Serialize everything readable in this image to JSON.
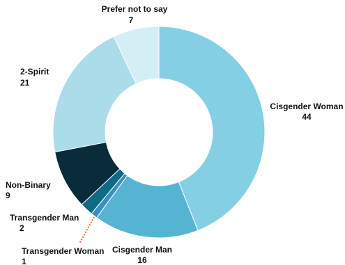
{
  "chart_data": {
    "type": "pie",
    "variant": "donut",
    "title": "",
    "categories": [
      "Cisgender Woman",
      "Cisgender Man",
      "Transgender Woman",
      "Transgender Man",
      "Non-Binary",
      "2-Spirit",
      "Prefer not to say"
    ],
    "values": [
      44,
      16,
      1,
      2,
      9,
      21,
      7
    ],
    "value_labels": [
      "44",
      "16",
      "1",
      "2",
      "9",
      "21",
      "7"
    ],
    "colors": [
      "#85cfe4",
      "#56b4d3",
      "#3a8fc4",
      "#0f6a84",
      "#0a2b39",
      "#aadcea",
      "#d4eef6"
    ],
    "legend": "none",
    "start_angle": "12 o'clock",
    "direction": "clockwise"
  }
}
